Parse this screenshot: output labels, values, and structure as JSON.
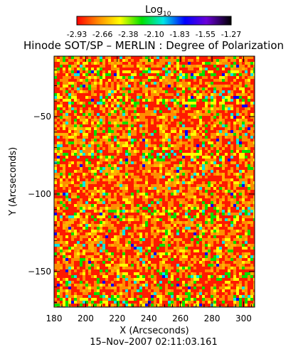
{
  "colorbar": {
    "label_main": "Log",
    "label_sub": "10",
    "tick_labels": [
      "-2.93",
      "-2.66",
      "-2.38",
      "-2.10",
      "-1.83",
      "-1.55",
      "-1.27"
    ],
    "colors": [
      "#ff0000",
      "#ff8c00",
      "#ffff00",
      "#00e000",
      "#00e5e5",
      "#0000ff",
      "#6a00d8",
      "#000000"
    ]
  },
  "chart_data": {
    "type": "heatmap",
    "title": "Hinode SOT/SP – MERLIN : Degree of Polarization",
    "xlabel": "X (Arcseconds)",
    "ylabel": "Y (Arcseconds)",
    "xlim": [
      180,
      307
    ],
    "ylim": [
      -173,
      -11
    ],
    "x_ticks": [
      180,
      200,
      220,
      240,
      260,
      280,
      300
    ],
    "y_ticks": [
      -50,
      -100,
      -150
    ],
    "x_tick_labels": [
      "180",
      "200",
      "220",
      "240",
      "260",
      "280",
      "300"
    ],
    "y_tick_labels": [
      "−50",
      "−100",
      "−150"
    ],
    "value_range": [
      -2.93,
      -1.27
    ],
    "value_scale": "log10",
    "colormap": [
      "#ff0000",
      "#ff8c00",
      "#ffff00",
      "#00e000",
      "#00e5e5",
      "#0000ff",
      "#6a00d8",
      "#000000"
    ],
    "background_color": "#ff4000",
    "grid": false,
    "footer": "15–Nov–2007 02:11:03.161"
  }
}
